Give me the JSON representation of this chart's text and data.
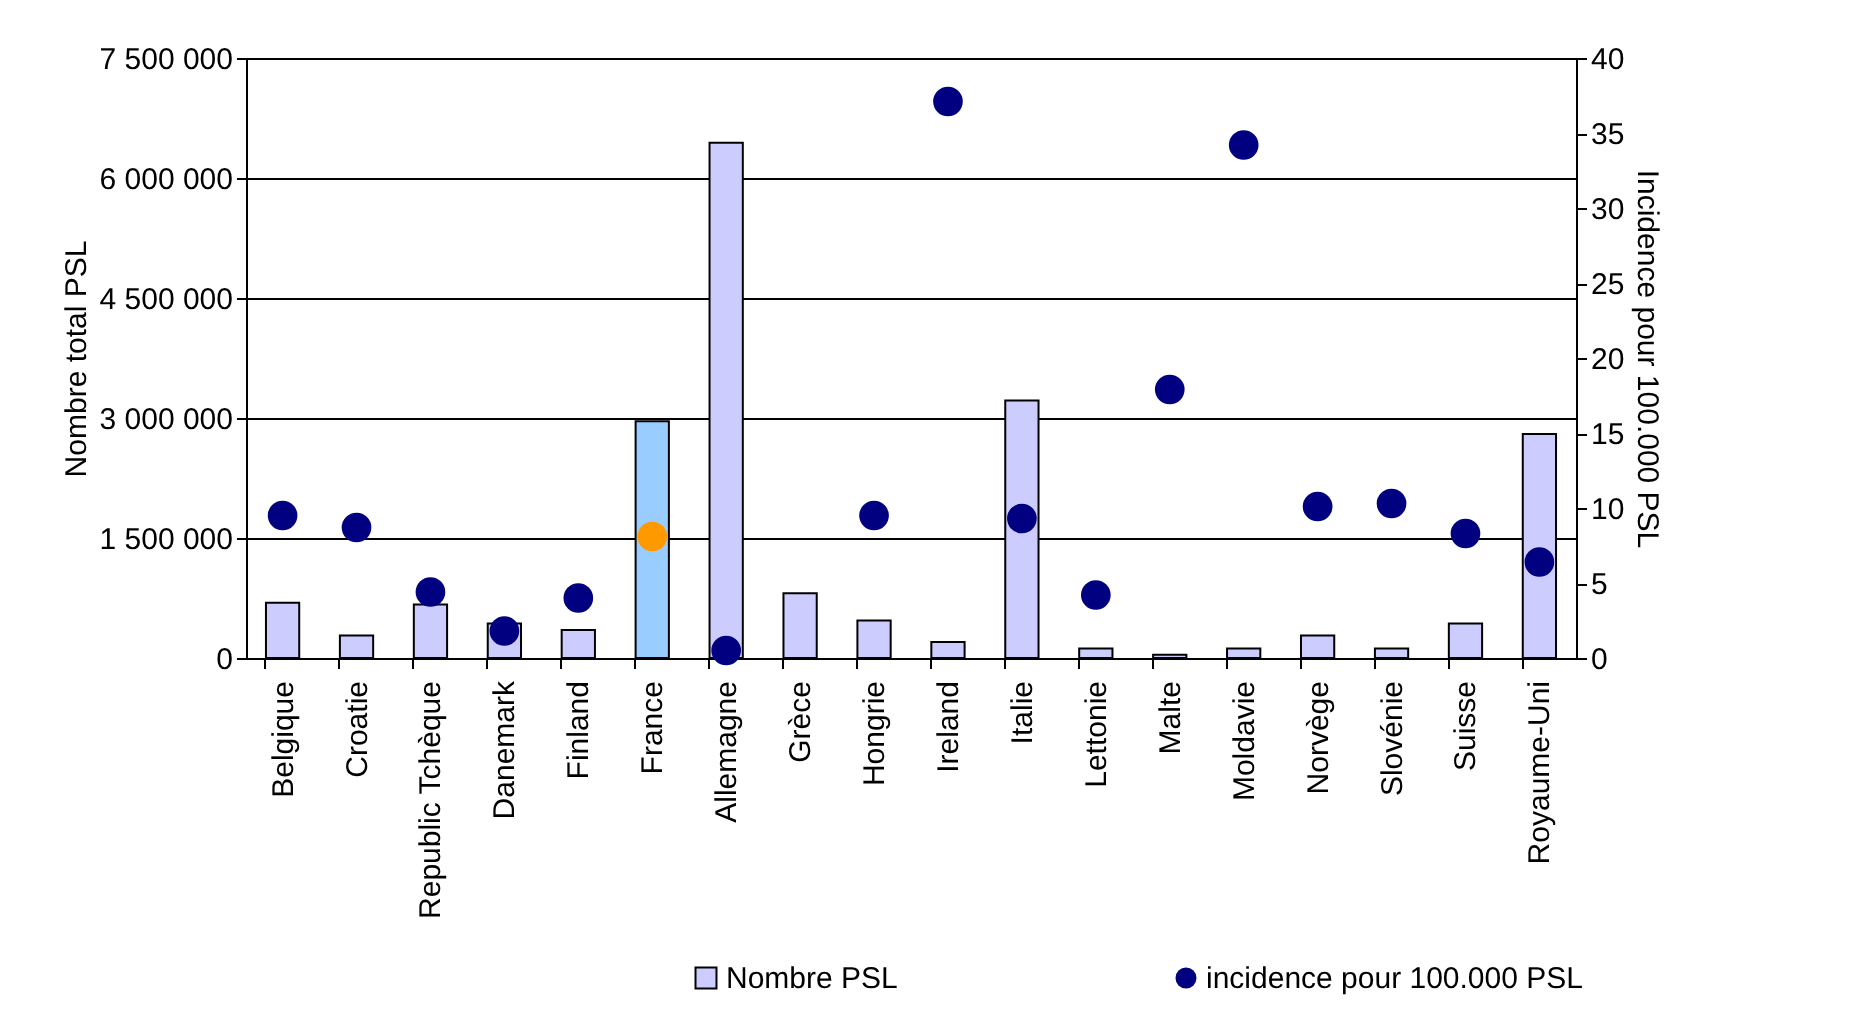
{
  "chart_data": {
    "type": "bar",
    "ylabel": "Nombre total PSL",
    "y2label": "Incidence pour 100.000 PSL",
    "categories": [
      "Belgique",
      "Croatie",
      "Republic Tchèque",
      "Danemark",
      "Finland",
      "France",
      "Allemagne",
      "Grèce",
      "Hongrie",
      "Ireland",
      "Italie",
      "Lettonie",
      "Malte",
      "Moldavie",
      "Norvège",
      "Slovénie",
      "Suisse",
      "Royaume-Uni"
    ],
    "series": [
      {
        "name": "Nombre PSL",
        "color": "#ccccff",
        "colors": [
          "#ccccff",
          "#ccccff",
          "#ccccff",
          "#ccccff",
          "#ccccff",
          "#99ccff",
          "#ccccff",
          "#ccccff",
          "#ccccff",
          "#ccccff",
          "#ccccff",
          "#ccccff",
          "#ccccff",
          "#ccccff",
          "#ccccff",
          "#ccccff",
          "#ccccff",
          "#ccccff"
        ],
        "values": [
          690000,
          280000,
          670000,
          430000,
          350000,
          2960000,
          6440000,
          810000,
          470000,
          200000,
          3220000,
          120000,
          40000,
          120000,
          280000,
          120000,
          430000,
          2800000
        ]
      },
      {
        "name": "incidence pour 100.000 PSL",
        "type": "scatter",
        "axis": "y2",
        "color": "#000080",
        "colors": [
          "#000080",
          "#000080",
          "#000080",
          "#000080",
          "#000080",
          "#ff9900",
          "#000080",
          "#000080",
          "#000080",
          "#000080",
          "#000080",
          "#000080",
          "#000080",
          "#000080",
          "#000080",
          "#000080",
          "#000080",
          "#000080"
        ],
        "values": [
          9.5,
          8.7,
          4.4,
          1.8,
          4.0,
          8.1,
          0.5,
          null,
          9.5,
          37.1,
          9.3,
          4.2,
          17.9,
          34.2,
          10.1,
          10.3,
          8.3,
          6.4
        ]
      }
    ],
    "ylim": [
      0,
      7500000
    ],
    "yticks": [
      {
        "value": 0,
        "label": "0"
      },
      {
        "value": 1500000,
        "label": "1 500 000"
      },
      {
        "value": 3000000,
        "label": "3 000 000"
      },
      {
        "value": 4500000,
        "label": "4 500 000"
      },
      {
        "value": 6000000,
        "label": "6 000 000"
      },
      {
        "value": 7500000,
        "label": "7 500 000"
      }
    ],
    "y2lim": [
      0,
      40
    ],
    "y2ticks": [
      0,
      5,
      10,
      15,
      20,
      25,
      30,
      35,
      40
    ],
    "grid": "y",
    "legend": "bottom",
    "marker": "circle"
  }
}
